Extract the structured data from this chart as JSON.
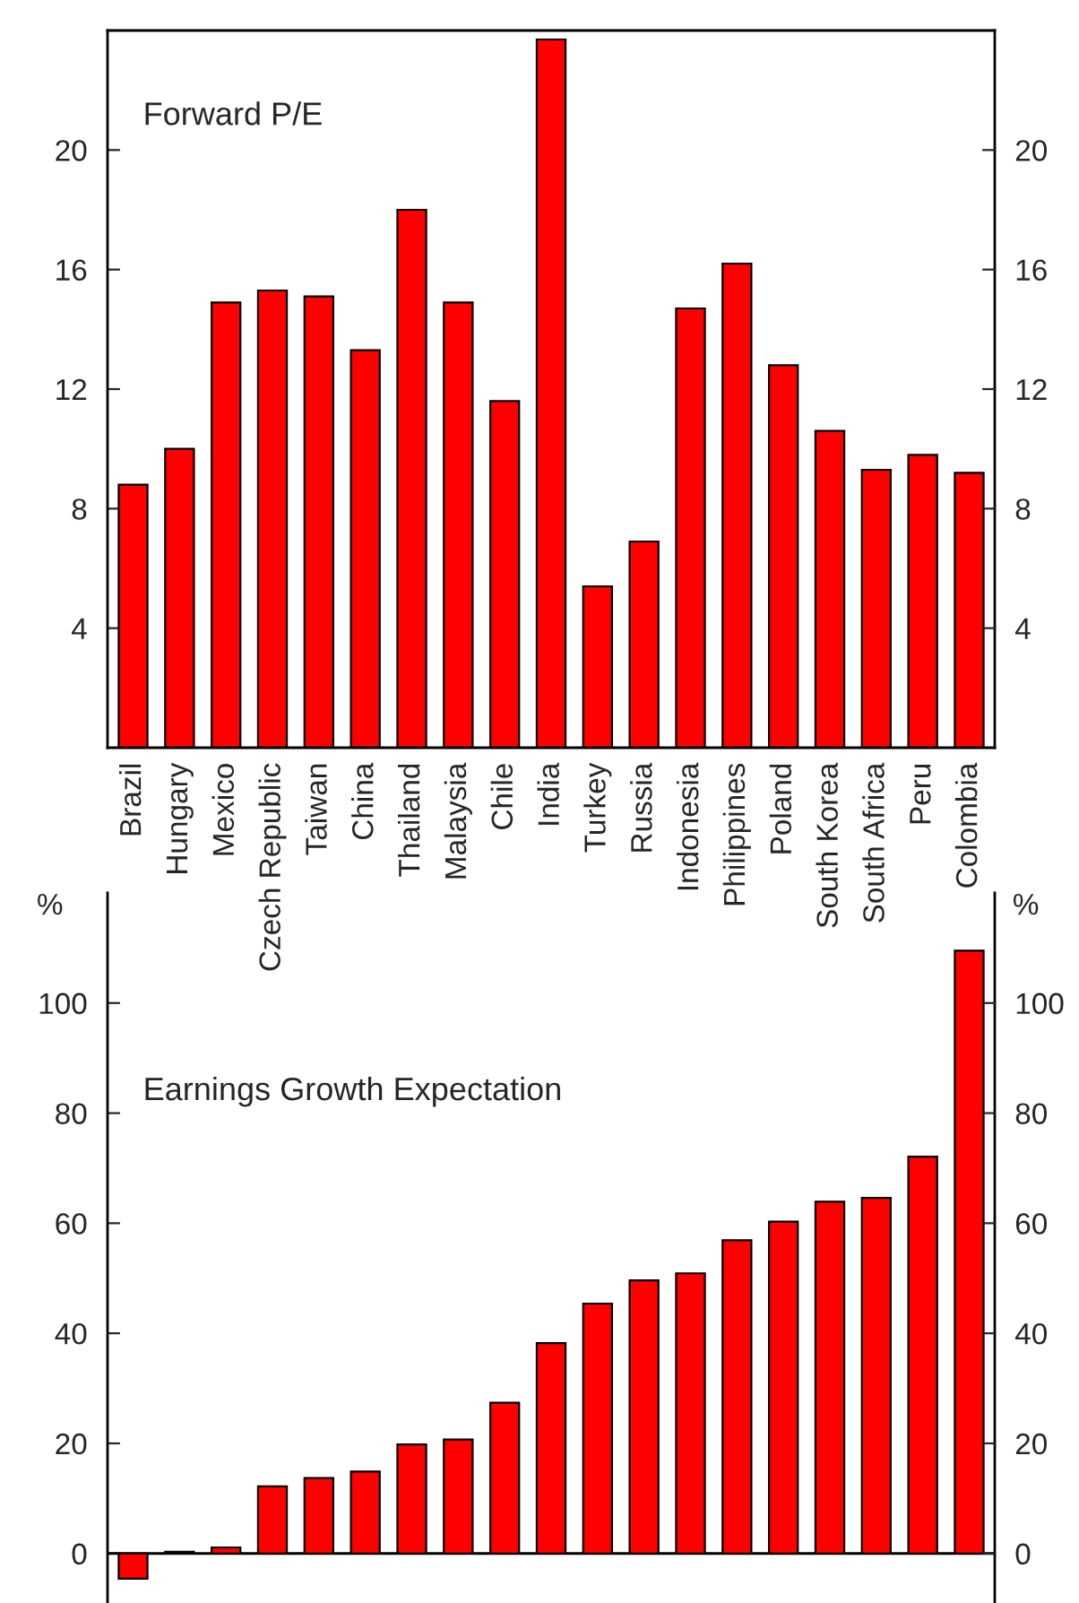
{
  "chart_data": [
    {
      "type": "bar",
      "title": "Forward P/E",
      "categories": [
        "Brazil",
        "Hungary",
        "Mexico",
        "Czech Republic",
        "Taiwan",
        "China",
        "Thailand",
        "Malaysia",
        "Chile",
        "India",
        "Turkey",
        "Russia",
        "Indonesia",
        "Philippines",
        "Poland",
        "South Korea",
        "South Africa",
        "Peru",
        "Colombia"
      ],
      "values": [
        8.8,
        10.0,
        14.9,
        15.3,
        15.1,
        13.3,
        18.0,
        14.9,
        11.6,
        23.7,
        5.4,
        6.9,
        14.7,
        16.2,
        12.8,
        10.6,
        9.3,
        9.8,
        9.2
      ],
      "color": "#ff0000",
      "ylim": [
        0,
        24
      ],
      "yticks": [
        4,
        8,
        12,
        16,
        20
      ],
      "y2lim": [
        0,
        24
      ],
      "y2ticks": [
        4,
        8,
        12,
        16,
        20
      ],
      "grid": false,
      "legend": false
    },
    {
      "type": "bar",
      "title": "Earnings Growth Expectation",
      "ylabel": "%",
      "y2label": "%",
      "categories": [
        null,
        null,
        null,
        null,
        null,
        null,
        null,
        null,
        null,
        null,
        null,
        null,
        null,
        null,
        null,
        null,
        null,
        null,
        null
      ],
      "values": [
        -4.6,
        0.3,
        1.1,
        12.2,
        13.7,
        14.9,
        19.8,
        20.7,
        27.4,
        38.2,
        45.4,
        49.6,
        50.9,
        56.9,
        60.3,
        63.9,
        64.6,
        72.1,
        109.5
      ],
      "color": "#ff0000",
      "ref_lines": [
        {
          "axis": "y",
          "value": 0,
          "color": "#000000"
        }
      ],
      "ylim": [
        -9,
        120
      ],
      "yticks": [
        0,
        20,
        40,
        60,
        80,
        100
      ],
      "y2lim": [
        -9,
        120
      ],
      "y2ticks": [
        0,
        20,
        40,
        60,
        80,
        100
      ],
      "grid": false,
      "legend": false
    }
  ]
}
